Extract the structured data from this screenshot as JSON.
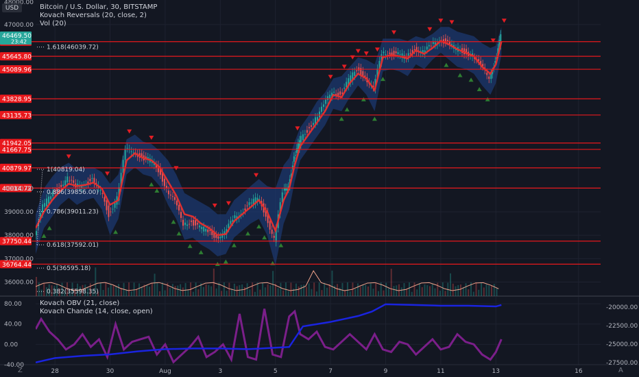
{
  "header": {
    "symbol_line": "Bitcoin / U.S. Dollar, 30, BITSTAMP",
    "indicator_1": "Kovach Reversals (20, close, 2)",
    "indicator_2": "Vol (20)",
    "sub_indicator_1": "Kovach OBV (21, close)",
    "sub_indicator_2": "Kovach Chande (14, close, open)",
    "currency_button": "USD",
    "top_clipped_price": "48000.00"
  },
  "controls": {
    "left": "Z",
    "right": "A"
  },
  "colors": {
    "background": "#131722",
    "grid": "#1e2230",
    "up": "#26a69a",
    "down": "#ef5350",
    "levels": "#e8181c",
    "band": "#1c3a73",
    "ma": "#e03030",
    "obv": "#1a24e0",
    "chande": "#7b1f8a",
    "volume_ma": "#f0a38b",
    "current_price_bg": "#26a69a"
  },
  "chart_data": [
    {
      "type": "candlestick",
      "title": "Bitcoin / U.S. Dollar, 30, BITSTAMP",
      "ylim": [
        35400,
        48050
      ],
      "y_ticks": [
        36000,
        37000,
        38000,
        39000,
        40000,
        47000
      ],
      "x_tick_labels": [
        "28",
        "30",
        "Aug",
        "3",
        "5",
        "7",
        "9",
        "11",
        "13",
        "16"
      ],
      "x_day_index": [
        1,
        3,
        5,
        7,
        9,
        11,
        13,
        15,
        17,
        20
      ],
      "x_range_days": [
        0.3,
        20.8
      ],
      "close_series": {
        "x_day": [
          0.3,
          0.6,
          0.9,
          1.2,
          1.5,
          1.8,
          2.1,
          2.4,
          2.7,
          3.0,
          3.3,
          3.6,
          3.9,
          4.2,
          4.5,
          4.8,
          5.1,
          5.4,
          5.7,
          6.0,
          6.3,
          6.6,
          6.9,
          7.2,
          7.5,
          7.8,
          8.1,
          8.4,
          8.7,
          9.0,
          9.3,
          9.5,
          9.7,
          9.9,
          10.2,
          10.5,
          10.8,
          11.1,
          11.4,
          11.7,
          12.0,
          12.3,
          12.6,
          12.9,
          13.2,
          13.5,
          13.8,
          14.1,
          14.4,
          14.7,
          15.0,
          15.3,
          15.6,
          15.9,
          16.2,
          16.5,
          16.8,
          17.0,
          17.2
        ],
        "close": [
          38000,
          39200,
          39700,
          40100,
          40400,
          40050,
          40250,
          40350,
          39900,
          38900,
          39600,
          41600,
          41650,
          41300,
          41200,
          40800,
          40000,
          39400,
          38500,
          38600,
          38300,
          38200,
          37950,
          38050,
          38700,
          39000,
          39300,
          39600,
          38900,
          37800,
          39800,
          40200,
          41300,
          42000,
          42500,
          43000,
          43500,
          44200,
          44000,
          44600,
          45100,
          44800,
          44200,
          45800,
          45800,
          45700,
          45600,
          46000,
          45800,
          46100,
          46400,
          46200,
          45950,
          45850,
          45700,
          45200,
          44800,
          45400,
          46500
        ],
        "band_upper": [
          38900,
          40000,
          40500,
          40900,
          41100,
          40800,
          40900,
          40900,
          40700,
          40200,
          40600,
          42100,
          42300,
          42000,
          41900,
          41600,
          41200,
          40600,
          39800,
          39600,
          39400,
          39200,
          38900,
          38900,
          39500,
          39800,
          40100,
          40400,
          40100,
          40000,
          41000,
          41300,
          42000,
          42600,
          43100,
          43700,
          44100,
          44700,
          44800,
          45200,
          45600,
          45500,
          45300,
          46400,
          46400,
          46400,
          46300,
          46500,
          46400,
          46600,
          46900,
          46900,
          46700,
          46600,
          46500,
          46200,
          46000,
          46100,
          46900
        ],
        "band_lower": [
          37200,
          38300,
          38800,
          39300,
          39600,
          39300,
          39500,
          39600,
          39100,
          38000,
          38700,
          40600,
          40900,
          40600,
          40500,
          40100,
          39300,
          38700,
          37800,
          37900,
          37600,
          37400,
          37100,
          37200,
          37900,
          38200,
          38500,
          38700,
          38000,
          36700,
          38500,
          39100,
          40300,
          41200,
          41700,
          42200,
          42700,
          43400,
          43300,
          43900,
          44400,
          44000,
          43300,
          45000,
          45100,
          45000,
          44800,
          45300,
          45100,
          45500,
          45800,
          45500,
          45200,
          45100,
          44900,
          44400,
          44000,
          44500,
          45700
        ],
        "ma": [
          38300,
          39000,
          39500,
          39900,
          40200,
          40100,
          40150,
          40250,
          40000,
          39300,
          39500,
          41200,
          41500,
          41300,
          41200,
          40900,
          40300,
          39700,
          38900,
          38800,
          38500,
          38300,
          38000,
          38050,
          38600,
          38900,
          39200,
          39500,
          39000,
          38200,
          39500,
          40000,
          41000,
          41800,
          42300,
          42800,
          43300,
          44000,
          43900,
          44500,
          44900,
          44700,
          44200,
          45600,
          45700,
          45650,
          45550,
          45900,
          45750,
          46000,
          46300,
          46150,
          45950,
          45800,
          45650,
          45200,
          44900,
          45300,
          46270
        ]
      },
      "up_markers_day": [
        0.6,
        0.8,
        3.2,
        4.5,
        4.7,
        5.3,
        5.5,
        5.9,
        6.3,
        6.9,
        7.2,
        7.5,
        8.0,
        8.4,
        8.6,
        8.9,
        9.2,
        11.4,
        11.6,
        12.2,
        12.6,
        12.9,
        15.2,
        15.7,
        16.1,
        16.4,
        16.7
      ],
      "down_markers_day": [
        1.5,
        2.9,
        3.7,
        4.5,
        5.4,
        6.8,
        7.3,
        8.3,
        9.8,
        11.0,
        11.5,
        11.8,
        12.0,
        12.3,
        12.7,
        13.3,
        14.6,
        15.0,
        15.4,
        16.9,
        17.3
      ],
      "level_lines": [
        46270.89,
        45645.8,
        45089.96,
        43828.95,
        43135.73,
        41942.05,
        41667.75,
        40879.97,
        40014.72,
        37750.44,
        36764.44
      ],
      "level_labels": [
        "46270.89",
        "45645.80",
        "45089.96",
        "43828.95",
        "43135.73",
        "41942.05",
        "41667.75",
        "40879.97",
        "40014.72",
        "37750.44",
        "36764.44"
      ],
      "current_price": {
        "value": 46469.5,
        "label": "46469.50",
        "countdown": "23:42"
      },
      "fib_levels": [
        {
          "ratio_label": "1.618(46039.72)",
          "price": 46039.72
        },
        {
          "ratio_label": "1(40819.04)",
          "price": 40819.04
        },
        {
          "ratio_label": "0.886(39856.00)",
          "price": 39856.0
        },
        {
          "ratio_label": "0.786(39011.23)",
          "price": 39011.23
        },
        {
          "ratio_label": "0.618(37592.01)",
          "price": 37592.01
        },
        {
          "ratio_label": "0.5(36595.18)",
          "price": 36595.18
        },
        {
          "ratio_label": "0.382(35598.35)",
          "price": 35598.35
        }
      ]
    },
    {
      "type": "line",
      "series": [
        {
          "name": "Kovach OBV (21, close)",
          "axis": "right",
          "x_day": [
            0.3,
            1,
            2,
            3,
            4,
            5,
            6,
            7,
            8,
            9,
            9.5,
            10,
            11,
            12,
            12.5,
            13,
            14,
            15,
            16,
            17,
            17.2
          ],
          "values": [
            -27500,
            -26900,
            -26600,
            -26400,
            -26000,
            -25700,
            -25600,
            -25600,
            -25700,
            -25500,
            -25400,
            -22600,
            -22000,
            -21200,
            -20600,
            -19600,
            -19700,
            -19800,
            -19800,
            -19900,
            -19700
          ]
        },
        {
          "name": "Kovach Chande (14, close, open)",
          "axis": "left",
          "x_day": [
            0.3,
            0.5,
            0.8,
            1.1,
            1.4,
            1.7,
            2.0,
            2.3,
            2.6,
            2.9,
            3.2,
            3.5,
            3.8,
            4.1,
            4.4,
            4.7,
            5.0,
            5.3,
            5.6,
            5.9,
            6.2,
            6.5,
            6.8,
            7.1,
            7.4,
            7.7,
            8.0,
            8.3,
            8.6,
            8.9,
            9.2,
            9.5,
            9.7,
            9.9,
            10.2,
            10.5,
            10.8,
            11.1,
            11.4,
            11.7,
            12.0,
            12.3,
            12.6,
            12.9,
            13.2,
            13.5,
            13.8,
            14.1,
            14.4,
            14.7,
            15.0,
            15.3,
            15.6,
            15.9,
            16.2,
            16.5,
            16.8,
            17.0,
            17.2
          ],
          "values": [
            30,
            50,
            25,
            10,
            -10,
            0,
            20,
            -5,
            10,
            -25,
            40,
            -10,
            5,
            10,
            15,
            -20,
            0,
            -35,
            -20,
            -5,
            15,
            -25,
            -15,
            0,
            -30,
            60,
            -25,
            -30,
            70,
            -20,
            -25,
            55,
            65,
            20,
            10,
            25,
            -5,
            -10,
            5,
            20,
            5,
            -10,
            20,
            -10,
            -15,
            5,
            0,
            -20,
            -5,
            10,
            -10,
            -5,
            20,
            5,
            0,
            -20,
            -30,
            -15,
            10
          ]
        }
      ],
      "left_ylim": [
        -40,
        95
      ],
      "left_ticks": [
        -40,
        0,
        40,
        80
      ],
      "left_tick_labels": [
        "-40.00",
        "0.00",
        "40.00",
        "80.00"
      ],
      "right_ylim": [
        -27800,
        -18500
      ],
      "right_ticks": [
        -27500,
        -25000,
        -22500,
        -20000
      ],
      "right_tick_labels": [
        "-27500.00",
        "-25000.00",
        "-22500.00",
        "-20000.00"
      ]
    }
  ]
}
